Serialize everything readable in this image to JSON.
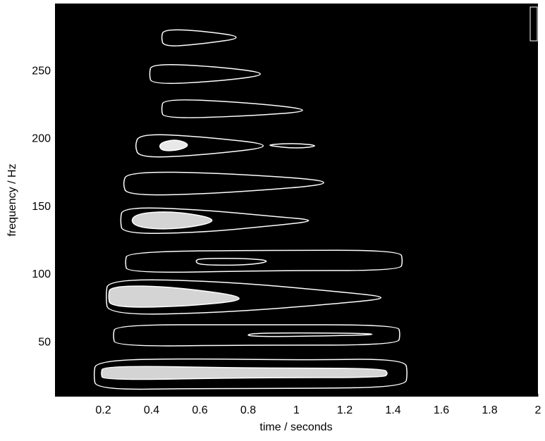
{
  "chart_data": {
    "type": "contour",
    "xlabel": "time / seconds",
    "ylabel": "frequency / Hz",
    "xlim": [
      0,
      2
    ],
    "ylim": [
      10,
      300
    ],
    "xticks": [
      0.2,
      0.4,
      0.6,
      0.8,
      1,
      1.2,
      1.4,
      1.6,
      1.8,
      2
    ],
    "yticks": [
      50,
      100,
      150,
      200,
      250
    ],
    "background": "#000000",
    "color": "#ffffff",
    "contours": [
      {
        "x": [
          0.17,
          0.6,
          1.0,
          1.45,
          1.46,
          1.45,
          1.0,
          0.6,
          0.17,
          0.16
        ],
        "y": [
          15,
          16,
          16,
          17,
          27,
          38,
          37,
          38,
          37,
          26
        ]
      },
      {
        "x": [
          0.2,
          0.8,
          1.36,
          1.38,
          1.36,
          0.8,
          0.2,
          0.19
        ],
        "y": [
          22,
          24,
          24,
          27,
          31,
          31,
          33,
          27
        ],
        "fill": "#d4d4d4"
      },
      {
        "x": [
          0.25,
          0.8,
          1.42,
          1.43,
          1.42,
          0.8,
          0.25,
          0.24
        ],
        "y": [
          47,
          48,
          48,
          56,
          63,
          63,
          63,
          55
        ]
      },
      {
        "x": [
          0.8,
          1.2,
          1.35,
          1.2,
          0.8
        ],
        "y": [
          54,
          55,
          56,
          57,
          57
        ]
      },
      {
        "x": [
          0.22,
          0.7,
          1.2,
          1.4,
          1.2,
          0.7,
          0.22,
          0.21
        ],
        "y": [
          70,
          72,
          79,
          83,
          87,
          95,
          97,
          84
        ]
      },
      {
        "x": [
          0.23,
          0.5,
          0.85,
          0.5,
          0.23,
          0.22
        ],
        "y": [
          76,
          76,
          82,
          91,
          92,
          84
        ],
        "fill": "#d4d4d4"
      },
      {
        "x": [
          0.3,
          0.9,
          1.43,
          1.44,
          1.43,
          0.9,
          0.3,
          0.29
        ],
        "y": [
          101,
          103,
          103,
          110,
          118,
          118,
          117,
          109
        ]
      },
      {
        "x": [
          0.6,
          0.8,
          0.9,
          0.8,
          0.6,
          0.58
        ],
        "y": [
          107,
          107,
          110,
          112,
          112,
          110
        ]
      },
      {
        "x": [
          0.28,
          0.6,
          0.9,
          1.1,
          0.9,
          0.6,
          0.28,
          0.27
        ],
        "y": [
          130,
          131,
          136,
          140,
          143,
          148,
          150,
          140
        ]
      },
      {
        "x": [
          0.32,
          0.5,
          0.7,
          0.5,
          0.32
        ],
        "y": [
          135,
          133,
          140,
          147,
          145
        ],
        "fill": "#d4d4d4"
      },
      {
        "x": [
          0.3,
          0.7,
          1.25,
          0.7,
          0.3,
          0.28
        ],
        "y": [
          158,
          160,
          168,
          175,
          176,
          167
        ]
      },
      {
        "x": [
          0.35,
          0.6,
          0.95,
          0.6,
          0.35,
          0.33
        ],
        "y": [
          186,
          188,
          195,
          202,
          204,
          195
        ]
      },
      {
        "x": [
          0.44,
          0.52,
          0.56,
          0.5,
          0.43
        ],
        "y": [
          191,
          192,
          196,
          200,
          197
        ],
        "fill": "#e8e8e8"
      },
      {
        "x": [
          0.89,
          1.0,
          1.1,
          1.0,
          0.89
        ],
        "y": [
          195,
          193,
          195,
          197,
          196
        ]
      },
      {
        "x": [
          0.45,
          0.8,
          1.1,
          0.8,
          0.45,
          0.44
        ],
        "y": [
          215,
          217,
          221,
          227,
          230,
          222
        ]
      },
      {
        "x": [
          0.4,
          0.7,
          0.9,
          0.7,
          0.4,
          0.39
        ],
        "y": [
          240,
          243,
          248,
          253,
          256,
          248
        ]
      },
      {
        "x": [
          0.45,
          0.6,
          0.8,
          0.6,
          0.45,
          0.44
        ],
        "y": [
          268,
          270,
          275,
          280,
          281,
          275
        ]
      }
    ]
  }
}
